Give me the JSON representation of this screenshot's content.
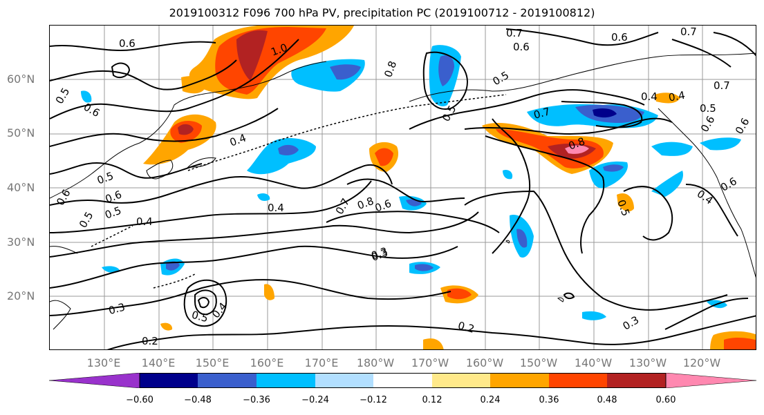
{
  "title": "2019100312 F096 700 hPa PV, precipitation PC (2019100712 - 2019100812)",
  "map": {
    "lat_labels": [
      "60°N",
      "50°N",
      "40°N",
      "30°N",
      "20°N"
    ],
    "lon_labels": [
      "130°E",
      "140°E",
      "150°E",
      "160°E",
      "170°E",
      "180°W",
      "170°W",
      "160°W",
      "150°W",
      "140°W",
      "130°W",
      "120°W"
    ],
    "contour_labels": [
      "0.6",
      "1.0",
      "0.7",
      "0.6",
      "0.7",
      "0.6",
      "0.5",
      "0.6",
      "0.8",
      "0.5",
      "0.4",
      "0.5",
      "0.7",
      "0.4",
      "0.5",
      "0.6",
      "0.7",
      "0.5",
      "0.6",
      "0.8",
      "0.3",
      "0.6",
      "0.5",
      "0.4",
      "0.4",
      "0.5",
      "0.6",
      "0.4",
      "0.7",
      "0.8",
      "0.6",
      "0.6",
      "0.4",
      "0.5",
      "0.3",
      "0.3",
      "0.5",
      "0.4",
      "0.2",
      "0.2",
      "0.3"
    ]
  },
  "colorbar": {
    "ticks": [
      "−0.60",
      "−0.48",
      "−0.36",
      "−0.24",
      "−0.12",
      "0.12",
      "0.24",
      "0.36",
      "0.48",
      "0.60"
    ],
    "colors": [
      "#9932cc",
      "#00008b",
      "#3a5fcd",
      "#00bfff",
      "#b2dfff",
      "#ffffff",
      "#ffe98a",
      "#ffa500",
      "#ff4500",
      "#b22222",
      "#ff88b0"
    ]
  }
}
